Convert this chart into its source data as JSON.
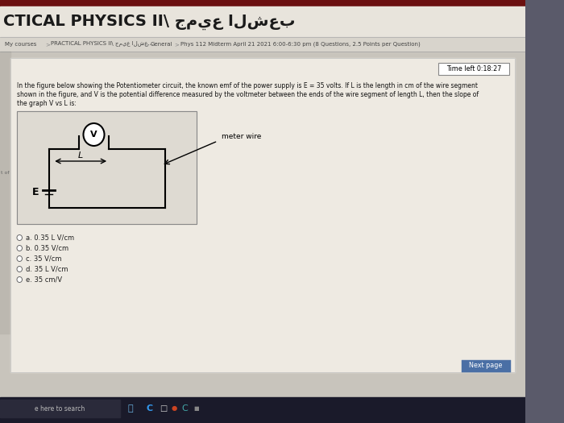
{
  "bg_color": "#7a7a7a",
  "dark_red_bar": "#6b1010",
  "header_bg": "#e8e4dc",
  "header_text": "CTICAL PHYSICS II\\ جميع الشعب",
  "breadcrumb_bg": "#d8d4cc",
  "breadcrumb_text_color": "#444444",
  "nav_separator_color": "#aaaaaa",
  "main_bg": "#c8c4bc",
  "content_bg": "#eeeae2",
  "content_border": "#bbbbbb",
  "timer_text": "Time left 0:18:27",
  "timer_border": "#888888",
  "question_text_line1": "In the figure below showing the Potentiometer circuit, the known emf of the power supply is E = 35 volts. If L is the length in cm of the wire segment",
  "question_text_line2": "shown in the figure, and V is the potential difference measured by the voltmeter between the ends of the wire segment of length L, then the slope of",
  "question_text_line3": "the graph V vs L is:",
  "circuit_bg": "#dedad2",
  "circuit_border": "#999999",
  "options": [
    "a. 0.35 L V/cm",
    "b. 0.35 V/cm",
    "c. 35 V/cm",
    "d. 35 L V/cm",
    "e. 35 cm/V"
  ],
  "meter_wire_label": "meter wire",
  "E_label": "E",
  "next_button_text": "Next page",
  "next_btn_color": "#4a6fa5",
  "taskbar_bg": "#1a1a2a",
  "search_text": "e here to search",
  "left_tab_text": "t of",
  "screen_bg": "#5a5a6a"
}
